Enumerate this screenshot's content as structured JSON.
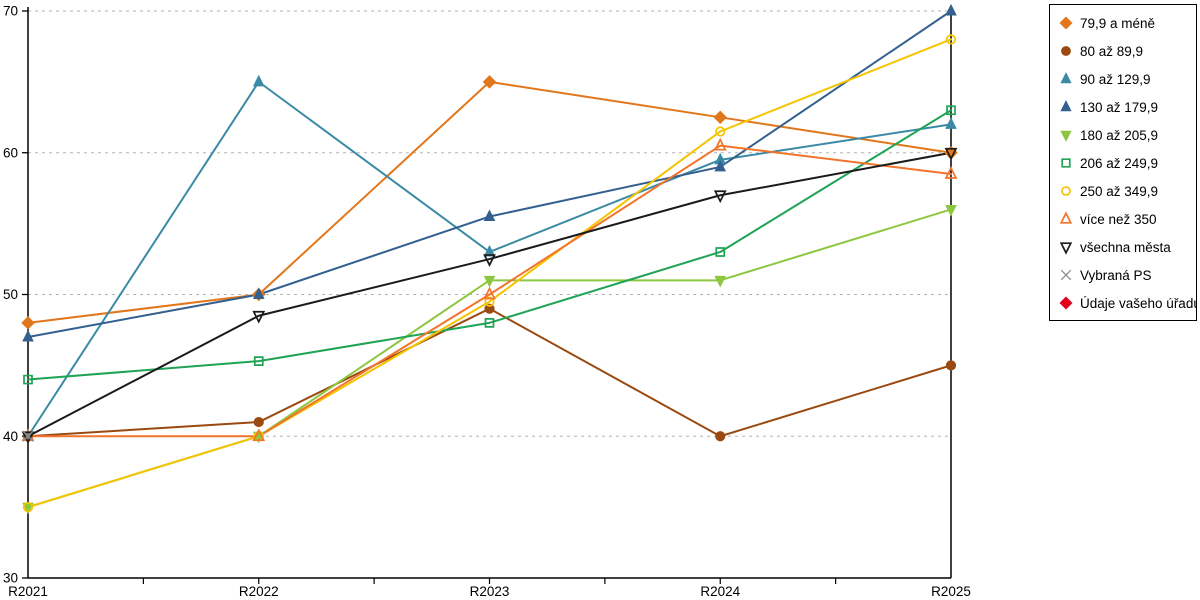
{
  "chart_data": {
    "type": "line",
    "title": "",
    "xlabel": "",
    "ylabel": "",
    "categories": [
      "R2021",
      "R2022",
      "R2023",
      "R2024",
      "R2025"
    ],
    "ylim": [
      30,
      70
    ],
    "y_ticks": [
      70,
      60,
      50,
      40,
      30
    ],
    "grid": "horizontal-dashed",
    "legend_position": "right-outside",
    "series": [
      {
        "name": "79,9 a méně",
        "color": "#e2761b",
        "marker": "diamond",
        "filled": true,
        "values": [
          48,
          50,
          65,
          62.5,
          60
        ]
      },
      {
        "name": "80 až 89,9",
        "color": "#9a4a10",
        "marker": "circle",
        "filled": true,
        "values": [
          40,
          41,
          49,
          40,
          45
        ]
      },
      {
        "name": "90 až 129,9",
        "color": "#3b8aa5",
        "marker": "triangle-up",
        "filled": true,
        "values": [
          40,
          65,
          53,
          59.5,
          62
        ]
      },
      {
        "name": "130 až 179,9",
        "color": "#33608f",
        "marker": "triangle-up",
        "filled": true,
        "values": [
          47,
          50,
          55.5,
          59,
          70
        ]
      },
      {
        "name": "180 až 205,9",
        "color": "#8dc63f",
        "marker": "triangle-down",
        "filled": true,
        "values": [
          35,
          40,
          51,
          51,
          56
        ]
      },
      {
        "name": "206 až 249,9",
        "color": "#1fa355",
        "marker": "square",
        "filled": false,
        "values": [
          44,
          45.3,
          48,
          53,
          63
        ]
      },
      {
        "name": "250 až 349,9",
        "color": "#f5c400",
        "marker": "circle",
        "filled": false,
        "values": [
          35,
          40,
          49.5,
          61.5,
          68
        ]
      },
      {
        "name": "více než 350",
        "color": "#f1742a",
        "marker": "triangle-up",
        "filled": false,
        "values": [
          40,
          40,
          50,
          60.5,
          58.5
        ]
      },
      {
        "name": "všechna města",
        "color": "#1a1a1a",
        "marker": "triangle-down",
        "filled": false,
        "values": [
          40,
          48.5,
          52.5,
          57,
          60
        ]
      },
      {
        "name": "Vybraná PS",
        "color": "#8c8c8c",
        "marker": "x",
        "filled": false,
        "values": [
          40,
          null,
          null,
          null,
          null
        ]
      },
      {
        "name": "Údaje vašeho úřadu",
        "color": "#e3001b",
        "marker": "diamond",
        "filled": true,
        "values": [
          null,
          null,
          null,
          null,
          null
        ]
      }
    ]
  },
  "axis": {
    "y_labels": [
      "70",
      "60",
      "50",
      "40",
      "30"
    ],
    "x_labels": [
      "R2021",
      "R2022",
      "R2023",
      "R2024",
      "R2025"
    ]
  },
  "colors": {
    "background": "#ffffff",
    "grid": "#b3b3b3",
    "axis": "#000000",
    "legend_border": "#000000",
    "text": "#000000"
  }
}
